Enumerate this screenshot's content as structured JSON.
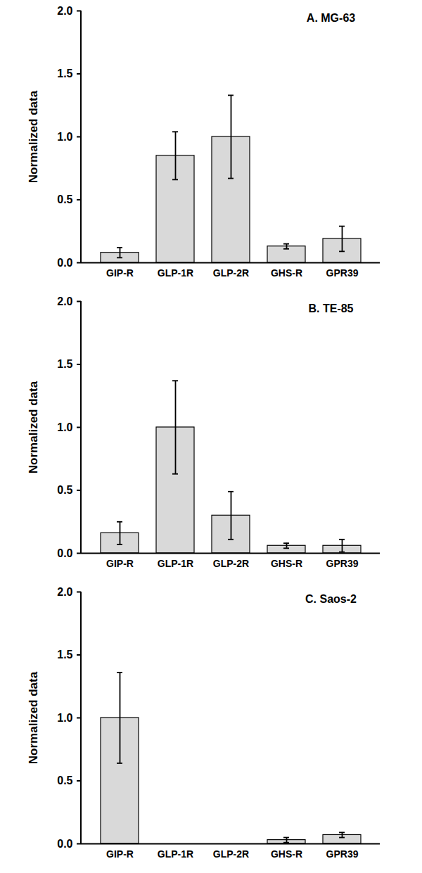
{
  "chart_data": [
    {
      "type": "bar",
      "title": "A. MG-63",
      "y_label": "Normalized data",
      "categories": [
        "GIP-R",
        "GLP-1R",
        "GLP-2R",
        "GHS-R",
        "GPR39"
      ],
      "values": [
        0.08,
        0.85,
        1.0,
        0.13,
        0.19
      ],
      "errors": [
        0.04,
        0.19,
        0.33,
        0.02,
        0.1
      ],
      "color": "#d9d9d9",
      "ylim": [
        0,
        2
      ],
      "yticks": [
        {
          "value": 0,
          "label": "0.0"
        },
        {
          "value": 0.5,
          "label": "0.5"
        },
        {
          "value": 1,
          "label": "1.0"
        },
        {
          "value": 1.5,
          "label": "1.5"
        },
        {
          "value": 2,
          "label": "2.0"
        }
      ],
      "grid": false
    },
    {
      "type": "bar",
      "title": "B. TE-85",
      "y_label": "Normalized data",
      "categories": [
        "GIP-R",
        "GLP-1R",
        "GLP-2R",
        "GHS-R",
        "GPR39"
      ],
      "values": [
        0.16,
        1.0,
        0.3,
        0.06,
        0.06
      ],
      "errors": [
        0.09,
        0.37,
        0.19,
        0.02,
        0.05
      ],
      "color": "#d9d9d9",
      "ylim": [
        0,
        2
      ],
      "yticks": [
        {
          "value": 0,
          "label": "0.0"
        },
        {
          "value": 0.5,
          "label": "0.5"
        },
        {
          "value": 1,
          "label": "1.0"
        },
        {
          "value": 1.5,
          "label": "1.5"
        },
        {
          "value": 2,
          "label": "2.0"
        }
      ],
      "grid": false
    },
    {
      "type": "bar",
      "title": "C. Saos-2",
      "y_label": "Normalized data",
      "categories": [
        "GIP-R",
        "GLP-1R",
        "GLP-2R",
        "GHS-R",
        "GPR39"
      ],
      "values": [
        1.0,
        0,
        0,
        0.03,
        0.07
      ],
      "errors": [
        0.36,
        null,
        null,
        0.02,
        0.02
      ],
      "color": "#d9d9d9",
      "ylim": [
        0,
        2
      ],
      "yticks": [
        {
          "value": 0,
          "label": "0.0"
        },
        {
          "value": 0.5,
          "label": "0.5"
        },
        {
          "value": 1,
          "label": "1.0"
        },
        {
          "value": 1.5,
          "label": "1.5"
        },
        {
          "value": 2,
          "label": "2.0"
        }
      ],
      "grid": false
    }
  ]
}
